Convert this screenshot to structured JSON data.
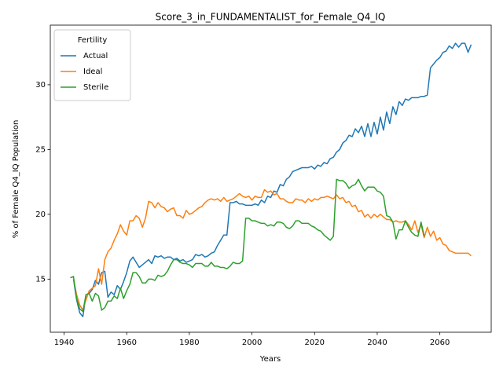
{
  "chart_data": {
    "type": "line",
    "title": "Score_3_in_FUNDAMENTALIST_for_Female_Q4_IQ",
    "x_label": "Years",
    "y_label": "% of Female Q4_IQ Population",
    "legend_title": "Fertility",
    "legend_position": "upper left",
    "x": [
      1942,
      1943,
      1944,
      1945,
      1946,
      1947,
      1948,
      1949,
      1950,
      1951,
      1952,
      1953,
      1954,
      1955,
      1956,
      1957,
      1958,
      1959,
      1960,
      1961,
      1962,
      1963,
      1964,
      1965,
      1966,
      1967,
      1968,
      1969,
      1970,
      1971,
      1972,
      1973,
      1974,
      1975,
      1976,
      1977,
      1978,
      1979,
      1980,
      1981,
      1982,
      1983,
      1984,
      1985,
      1986,
      1987,
      1988,
      1989,
      1990,
      1991,
      1992,
      1993,
      1994,
      1995,
      1996,
      1997,
      1998,
      1999,
      2000,
      2001,
      2002,
      2003,
      2004,
      2005,
      2006,
      2007,
      2008,
      2009,
      2010,
      2011,
      2012,
      2013,
      2014,
      2015,
      2016,
      2017,
      2018,
      2019,
      2020,
      2021,
      2022,
      2023,
      2024,
      2025,
      2026,
      2027,
      2028,
      2029,
      2030,
      2031,
      2032,
      2033,
      2034,
      2035,
      2036,
      2037,
      2038,
      2039,
      2040,
      2041,
      2042,
      2043,
      2044,
      2045,
      2046,
      2047,
      2048,
      2049,
      2050,
      2051,
      2052,
      2053,
      2054,
      2055,
      2056,
      2057,
      2058,
      2059,
      2060,
      2061,
      2062,
      2063,
      2064,
      2065,
      2066,
      2067,
      2068,
      2069,
      2070
    ],
    "series": [
      {
        "name": "Actual",
        "color": "#1f77b4",
        "values": [
          null,
          15.0,
          13.4,
          12.4,
          12.1,
          13.8,
          13.9,
          14.2,
          14.9,
          14.6,
          15.5,
          15.6,
          13.6,
          14.0,
          13.8,
          14.5,
          14.2,
          14.8,
          15.5,
          16.4,
          16.7,
          16.3,
          15.9,
          16.1,
          16.3,
          16.5,
          16.2,
          16.8,
          16.7,
          16.8,
          16.6,
          16.7,
          16.7,
          16.5,
          16.6,
          16.4,
          16.5,
          16.3,
          16.4,
          16.5,
          16.9,
          16.8,
          16.9,
          16.7,
          16.8,
          17.0,
          17.1,
          17.6,
          18.0,
          18.4,
          18.4,
          20.9,
          20.9,
          21.0,
          20.8,
          20.8,
          20.7,
          20.7,
          20.7,
          20.8,
          20.7,
          21.1,
          20.9,
          21.4,
          21.3,
          21.8,
          21.7,
          22.3,
          22.2,
          22.7,
          22.9,
          23.3,
          23.4,
          23.5,
          23.6,
          23.6,
          23.6,
          23.7,
          23.5,
          23.8,
          23.7,
          24.0,
          23.9,
          24.3,
          24.4,
          24.8,
          25.0,
          25.5,
          25.7,
          26.1,
          26.0,
          26.6,
          26.3,
          26.8,
          26.0,
          27.0,
          26.0,
          27.1,
          26.2,
          27.5,
          26.5,
          27.9,
          27.0,
          28.3,
          27.7,
          28.7,
          28.4,
          28.9,
          28.8,
          29.0,
          29.0,
          29.0,
          29.1,
          29.1,
          29.2,
          31.3,
          31.6,
          31.9,
          32.1,
          32.5,
          32.6,
          33.0,
          32.8,
          33.2,
          32.9,
          33.2,
          33.2,
          32.5,
          33.1
        ]
      },
      {
        "name": "Ideal",
        "color": "#ff7f0e",
        "values": [
          null,
          15.0,
          13.8,
          13.0,
          12.6,
          13.4,
          14.1,
          14.3,
          14.5,
          15.8,
          14.6,
          16.5,
          17.1,
          17.4,
          18.0,
          18.5,
          19.2,
          18.7,
          18.4,
          19.5,
          19.5,
          19.9,
          19.7,
          19.0,
          19.7,
          21.0,
          20.9,
          20.5,
          20.9,
          20.6,
          20.5,
          20.2,
          20.4,
          20.5,
          19.9,
          19.9,
          19.7,
          20.3,
          20.0,
          20.1,
          20.3,
          20.5,
          20.6,
          20.9,
          21.1,
          21.2,
          21.1,
          21.2,
          21.0,
          21.3,
          21.0,
          21.1,
          21.2,
          21.4,
          21.6,
          21.4,
          21.3,
          21.4,
          21.1,
          21.4,
          21.3,
          21.3,
          21.9,
          21.7,
          21.8,
          21.5,
          21.6,
          21.2,
          21.2,
          21.0,
          20.9,
          20.9,
          21.2,
          21.1,
          21.1,
          20.9,
          21.2,
          21.0,
          21.2,
          21.1,
          21.3,
          21.3,
          21.4,
          21.3,
          21.2,
          21.5,
          21.2,
          21.3,
          20.9,
          21.0,
          20.6,
          20.7,
          20.2,
          20.3,
          19.8,
          20.0,
          19.7,
          20.0,
          19.8,
          20.0,
          19.8,
          19.6,
          19.6,
          19.4,
          19.5,
          19.4,
          19.4,
          19.5,
          19.2,
          18.8,
          19.5,
          18.6,
          19.2,
          18.2,
          19.0,
          18.3,
          18.7,
          18.0,
          18.2,
          17.7,
          17.6,
          17.2,
          17.1,
          17.0,
          17.0,
          17.0,
          17.0,
          17.0,
          16.8
        ]
      },
      {
        "name": "Sterile",
        "color": "#2ca02c",
        "values": [
          15.1,
          15.2,
          13.5,
          12.7,
          12.5,
          13.8,
          13.9,
          13.3,
          13.9,
          13.7,
          12.6,
          12.8,
          13.3,
          13.3,
          13.7,
          13.5,
          14.3,
          13.5,
          14.1,
          14.6,
          15.5,
          15.5,
          15.2,
          14.7,
          14.7,
          15.0,
          15.0,
          14.9,
          15.3,
          15.2,
          15.3,
          15.6,
          16.1,
          16.5,
          16.5,
          16.3,
          16.2,
          16.2,
          16.1,
          15.9,
          16.2,
          16.2,
          16.2,
          16.0,
          16.0,
          16.3,
          16.0,
          16.0,
          15.9,
          15.9,
          15.8,
          16.0,
          16.3,
          16.2,
          16.2,
          16.4,
          19.7,
          19.7,
          19.5,
          19.5,
          19.4,
          19.3,
          19.3,
          19.1,
          19.2,
          19.1,
          19.4,
          19.4,
          19.3,
          19.0,
          18.9,
          19.1,
          19.5,
          19.5,
          19.3,
          19.3,
          19.3,
          19.1,
          19.0,
          18.8,
          18.7,
          18.4,
          18.2,
          18.0,
          18.3,
          22.7,
          22.6,
          22.6,
          22.4,
          22.0,
          22.2,
          22.3,
          22.7,
          22.2,
          21.8,
          22.1,
          22.1,
          22.1,
          21.8,
          21.7,
          21.4,
          19.9,
          19.8,
          19.4,
          18.1,
          18.8,
          18.8,
          19.5,
          19.0,
          18.6,
          18.4,
          18.3,
          19.4,
          18.3,
          null,
          null,
          null,
          null,
          null,
          null,
          null,
          null,
          null,
          null,
          null,
          null,
          null,
          null,
          null
        ]
      }
    ],
    "xlim": [
      1935.6,
      2076.4
    ],
    "xticks": [
      1940,
      1960,
      1980,
      2000,
      2020,
      2040,
      2060
    ],
    "ylim": [
      10.9,
      34.6
    ],
    "yticks": [
      15,
      20,
      25,
      30
    ],
    "grid": false
  }
}
